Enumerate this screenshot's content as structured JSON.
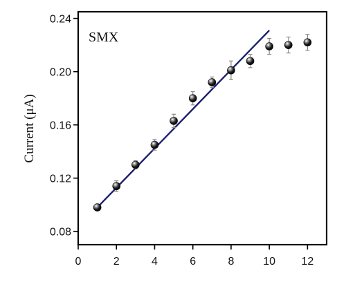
{
  "chart_data": {
    "type": "scatter",
    "annotation": "SMX",
    "xlabel": "",
    "ylabel": "Current (μA)",
    "xlim": [
      0,
      13
    ],
    "ylim": [
      0.07,
      0.245
    ],
    "x_ticks": [
      "0",
      "2",
      "4",
      "6",
      "8",
      "10",
      "12"
    ],
    "y_ticks": [
      "0.08",
      "0.12",
      "0.16",
      "0.20",
      "0.24"
    ],
    "series": [
      {
        "x": [
          1,
          2,
          3,
          4,
          5,
          6,
          7,
          8,
          9,
          10,
          11,
          12
        ],
        "y": [
          0.098,
          0.114,
          0.13,
          0.145,
          0.163,
          0.18,
          0.192,
          0.201,
          0.208,
          0.219,
          0.22,
          0.222
        ],
        "yerr": [
          0.002,
          0.004,
          0.003,
          0.004,
          0.005,
          0.005,
          0.004,
          0.007,
          0.005,
          0.006,
          0.006,
          0.006
        ]
      }
    ],
    "fit_line": {
      "x": [
        1,
        10
      ],
      "y": [
        0.098,
        0.231
      ],
      "color": "#1a1f6e"
    },
    "grid": false,
    "marker": "black-sphere"
  }
}
